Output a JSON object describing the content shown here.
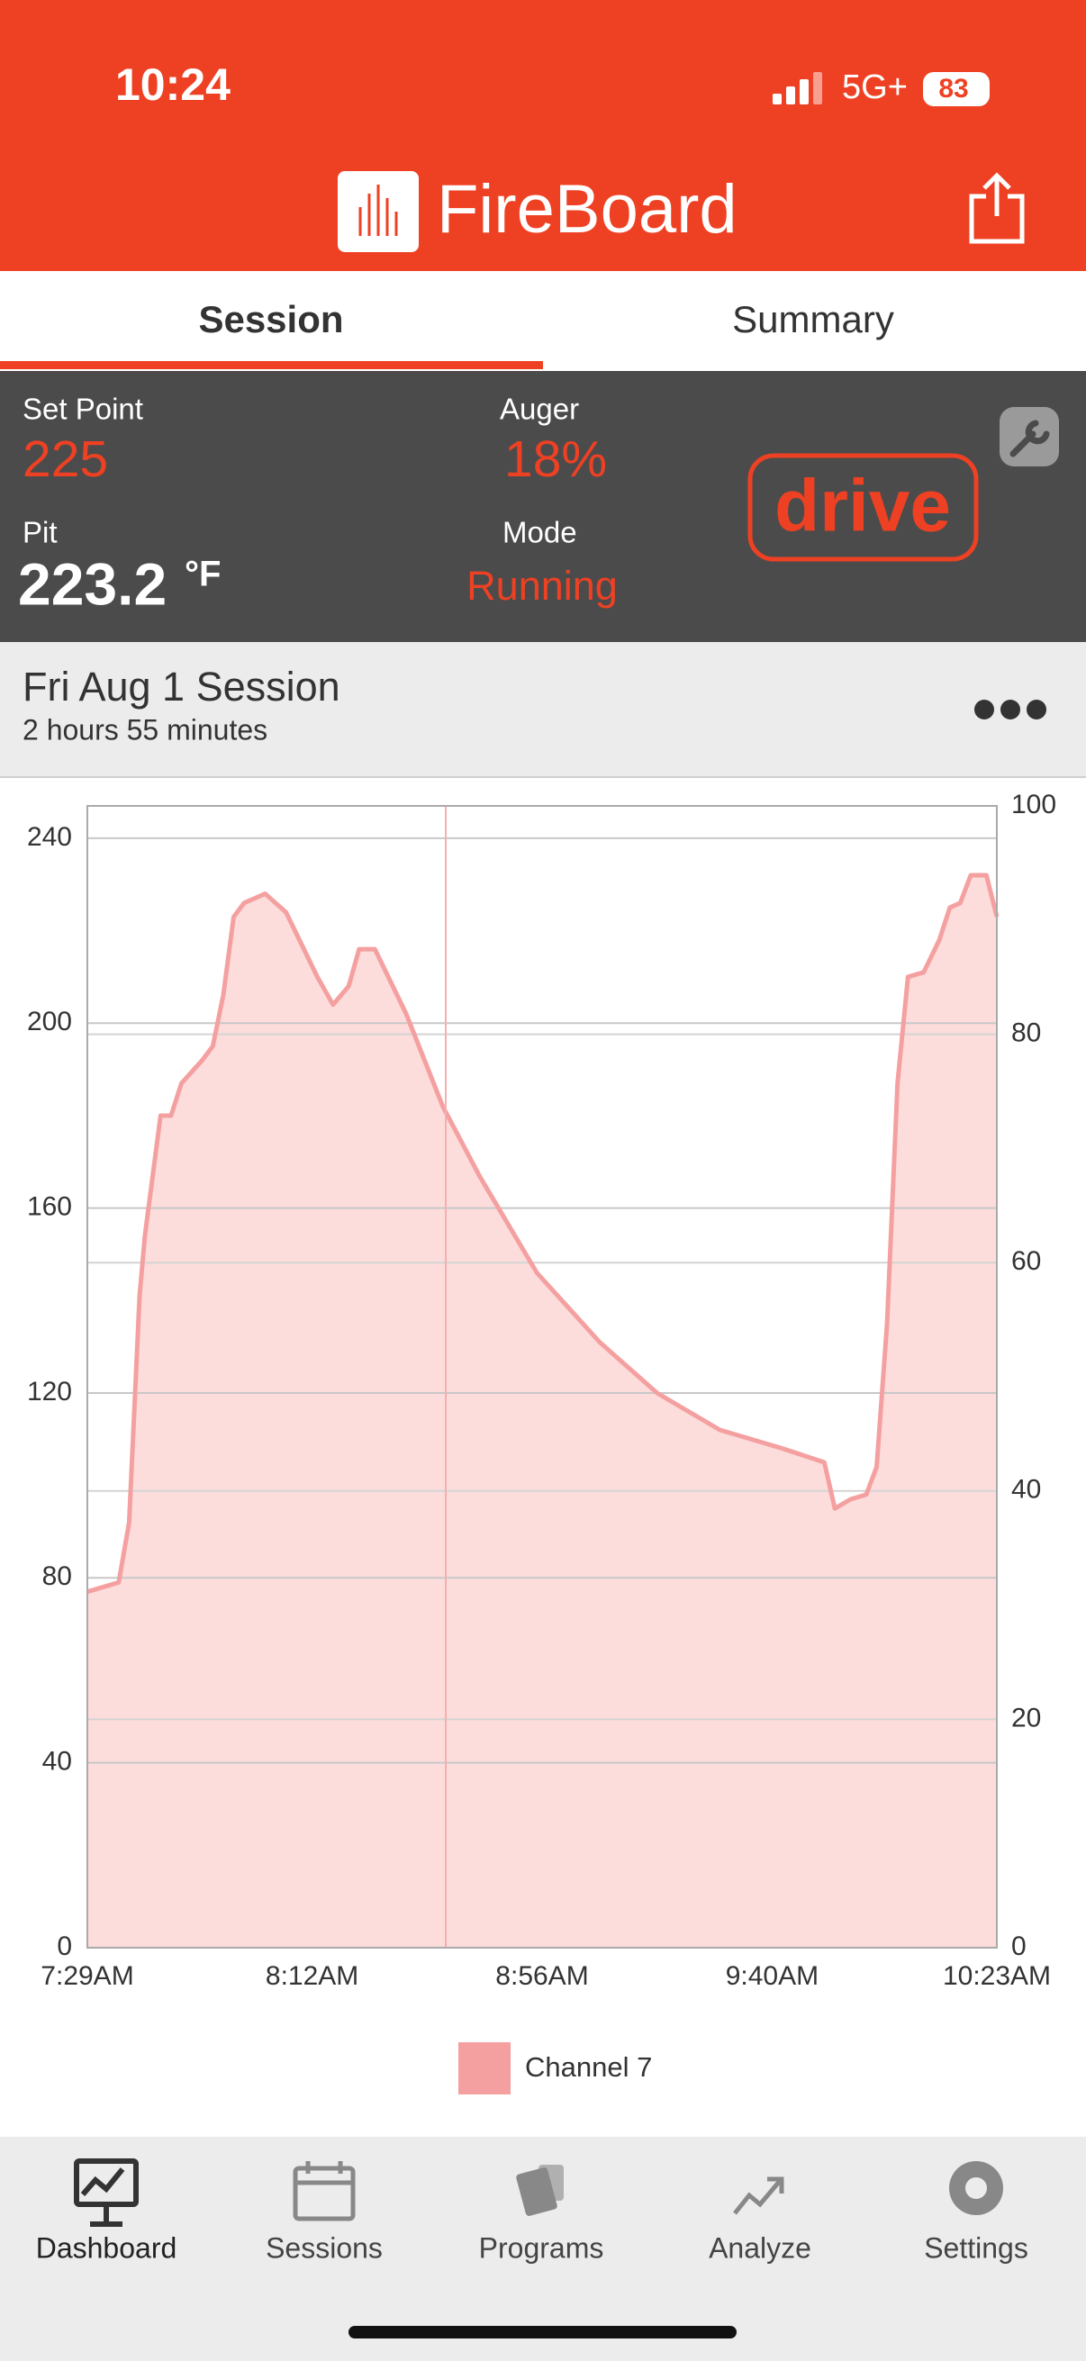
{
  "status_bar": {
    "time": "10:24",
    "network": "5G+",
    "battery": "83"
  },
  "header": {
    "title": "FireBoard"
  },
  "tabs": [
    "Session",
    "Summary"
  ],
  "controller": {
    "set_point_label": "Set Point",
    "set_point": "225",
    "auger_label": "Auger",
    "auger": "18%",
    "pit_label": "Pit",
    "pit": "223.2",
    "pit_unit": "°F",
    "mode_label": "Mode",
    "mode": "Running",
    "badge": "drive"
  },
  "session": {
    "title": "Fri Aug 1 Session",
    "duration": "2 hours 55 minutes"
  },
  "chart_data": {
    "type": "area",
    "x": [
      "7:29AM",
      "7:35AM",
      "7:37AM",
      "7:39AM",
      "7:40AM",
      "7:43AM",
      "7:45AM",
      "7:47AM",
      "7:51AM",
      "7:53AM",
      "7:55AM",
      "7:57AM",
      "7:59AM",
      "8:03AM",
      "8:07AM",
      "8:13AM",
      "8:16AM",
      "8:19AM",
      "8:21AM",
      "8:24AM",
      "8:30AM",
      "8:37AM",
      "8:44AM",
      "8:55AM",
      "9:07AM",
      "9:18AM",
      "9:30AM",
      "9:42AM",
      "9:50AM",
      "9:52AM",
      "9:55AM",
      "9:58AM",
      "10:00AM",
      "10:02AM",
      "10:04AM",
      "10:06AM",
      "10:09AM",
      "10:12AM",
      "10:14AM",
      "10:16AM",
      "10:18AM",
      "10:21AM",
      "10:23AM"
    ],
    "series": [
      {
        "name": "Channel 7",
        "color": "#f5a0a0",
        "fill": "#fddcdc",
        "values": [
          77,
          79,
          92,
          141,
          154,
          180,
          180,
          187,
          192,
          195,
          206,
          223,
          226,
          228,
          224,
          210,
          204,
          208,
          216,
          216,
          202,
          182,
          167,
          146,
          131,
          120,
          112,
          108,
          105,
          95,
          97,
          98,
          104,
          135,
          187,
          210,
          211,
          218,
          225,
          226,
          232,
          232,
          223
        ]
      }
    ],
    "xlim": [
      "7:29AM",
      "10:23AM"
    ],
    "xticks": [
      "7:29AM",
      "8:12AM",
      "8:56AM",
      "9:40AM",
      "10:23AM"
    ],
    "ylim": [
      0,
      247
    ],
    "yticks": [
      0,
      40,
      80,
      120,
      160,
      200,
      240
    ],
    "y2lim": [
      0,
      100
    ],
    "y2ticks": [
      0,
      20,
      40,
      60,
      80,
      100
    ],
    "grid": true
  },
  "nav": [
    "Dashboard",
    "Sessions",
    "Programs",
    "Analyze",
    "Settings"
  ]
}
